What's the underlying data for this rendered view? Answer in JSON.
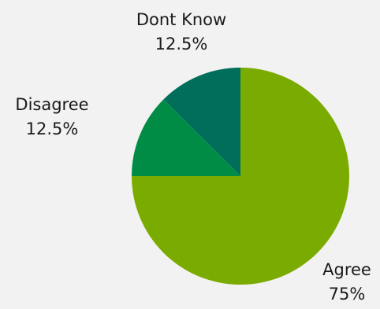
{
  "chart_data": {
    "type": "pie",
    "title": "",
    "slices": [
      {
        "label": "Agree",
        "value": 75,
        "display": "75%",
        "color": "#7aab00"
      },
      {
        "label": "Disagree",
        "value": 12.5,
        "display": "12.5%",
        "color": "#008c45"
      },
      {
        "label": "Dont Know",
        "value": 12.5,
        "display": "12.5%",
        "color": "#006e5a"
      }
    ],
    "legend": "none",
    "start": "12 o'clock",
    "direction": "clockwise"
  }
}
